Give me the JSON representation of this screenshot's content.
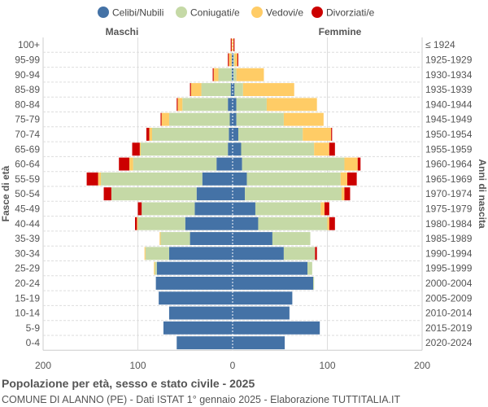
{
  "chart_data": {
    "type": "bar",
    "orientation": "horizontal-pyramid",
    "title": "Popolazione per età, sesso e stato civile - 2025",
    "subtitle": "COMUNE DI ALANNO (PE) - Dati ISTAT 1° gennaio 2025 - Elaborazione TUTTITALIA.IT",
    "left_label": "Maschi",
    "right_label": "Femmine",
    "ylabel_left": "Fasce di età",
    "ylabel_right": "Anni di nascita",
    "xlim": [
      -200,
      200
    ],
    "xticks": [
      "200",
      "100",
      "0",
      "100",
      "200"
    ],
    "legend_position": "top",
    "legend": [
      "Celibi/Nubili",
      "Coniugati/e",
      "Vedovi/e",
      "Divorziati/e"
    ],
    "colors": [
      "#4472a6",
      "#c5d9a6",
      "#ffcc66",
      "#cc0000"
    ],
    "age_groups": [
      "100+",
      "95-99",
      "90-94",
      "85-89",
      "80-84",
      "75-79",
      "70-74",
      "65-69",
      "60-64",
      "55-59",
      "50-54",
      "45-49",
      "40-44",
      "35-39",
      "30-34",
      "25-29",
      "20-24",
      "15-19",
      "10-14",
      "5-9",
      "0-4"
    ],
    "birth_years": [
      "≤ 1924",
      "1925-1929",
      "1930-1934",
      "1935-1939",
      "1940-1944",
      "1945-1949",
      "1950-1954",
      "1955-1959",
      "1960-1964",
      "1965-1969",
      "1970-1974",
      "1975-1979",
      "1980-1984",
      "1985-1989",
      "1990-1994",
      "1995-1999",
      "2000-2004",
      "2005-2009",
      "2010-2014",
      "2015-2019",
      "2020-2024"
    ],
    "males": {
      "celibi": [
        0,
        1,
        1,
        2,
        5,
        3,
        4,
        5,
        17,
        32,
        38,
        40,
        50,
        45,
        67,
        80,
        81,
        78,
        67,
        73,
        59
      ],
      "coniugati": [
        0,
        0,
        14,
        31,
        48,
        64,
        81,
        92,
        88,
        107,
        90,
        56,
        50,
        31,
        25,
        2,
        0,
        0,
        0,
        0,
        0
      ],
      "vedovi": [
        1,
        3,
        5,
        11,
        5,
        8,
        3,
        1,
        4,
        3,
        0,
        0,
        1,
        1,
        1,
        1,
        0,
        0,
        0,
        0,
        0
      ],
      "divorziati": [
        1,
        1,
        1,
        1,
        1,
        1,
        3,
        8,
        11,
        12,
        8,
        4,
        2,
        0,
        0,
        0,
        0,
        0,
        0,
        0,
        0
      ]
    },
    "females": {
      "nubili": [
        0,
        1,
        1,
        2,
        4,
        4,
        6,
        9,
        10,
        15,
        13,
        24,
        27,
        42,
        54,
        79,
        85,
        63,
        60,
        92,
        55
      ],
      "coniugate": [
        0,
        1,
        3,
        9,
        32,
        50,
        68,
        77,
        108,
        99,
        102,
        69,
        73,
        40,
        33,
        5,
        1,
        0,
        0,
        0,
        0
      ],
      "vedove": [
        1,
        3,
        29,
        54,
        53,
        42,
        30,
        16,
        14,
        7,
        3,
        4,
        2,
        0,
        0,
        0,
        0,
        0,
        0,
        0,
        0
      ],
      "divorziate": [
        1,
        1,
        0,
        0,
        0,
        0,
        1,
        6,
        3,
        10,
        6,
        5,
        6,
        0,
        2,
        0,
        0,
        0,
        0,
        0,
        0
      ]
    }
  }
}
